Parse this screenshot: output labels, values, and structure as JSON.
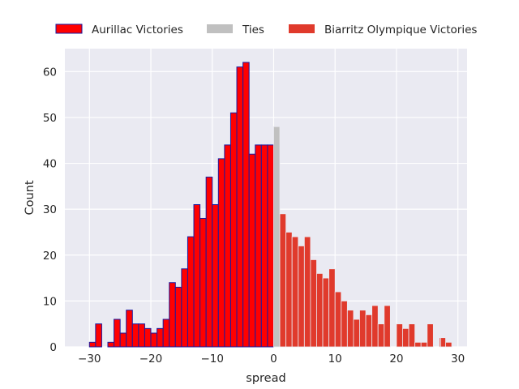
{
  "chart_data": {
    "type": "bar",
    "xlabel": "spread",
    "ylabel": "Count",
    "xlim": [
      -34,
      31.5
    ],
    "ylim": [
      0,
      65
    ],
    "xticks": [
      -30,
      -20,
      -10,
      0,
      10,
      20,
      30
    ],
    "yticks": [
      0,
      10,
      20,
      30,
      40,
      50,
      60
    ],
    "grid": true,
    "legend_position": "top",
    "bin_width": 1,
    "series": [
      {
        "name": "Aurillac Victories",
        "color": "#ff0000",
        "edge_color": "#1a1aa0",
        "x": [
          -30,
          -29,
          -28,
          -27,
          -26,
          -25,
          -24,
          -23,
          -22,
          -21,
          -20,
          -19,
          -18,
          -17,
          -16,
          -15,
          -14,
          -13,
          -12,
          -11,
          -10,
          -9,
          -8,
          -7,
          -6,
          -5,
          -4,
          -3,
          -2,
          -1
        ],
        "values": [
          1,
          5,
          0,
          1,
          6,
          3,
          8,
          5,
          5,
          4,
          3,
          4,
          6,
          14,
          13,
          17,
          24,
          31,
          28,
          37,
          31,
          41,
          44,
          51,
          61,
          62,
          42,
          44,
          44,
          44
        ]
      },
      {
        "name": "Ties",
        "color": "#c0c0c0",
        "x": [
          0
        ],
        "values": [
          48
        ]
      },
      {
        "name": "Biarritz Olympique Victories",
        "color": "#e03a2c",
        "x": [
          1,
          2,
          3,
          4,
          5,
          6,
          7,
          8,
          9,
          10,
          11,
          12,
          13,
          14,
          15,
          16,
          17,
          18,
          19,
          20,
          21,
          22,
          23,
          24,
          25,
          26,
          27,
          28
        ],
        "values": [
          29,
          25,
          24,
          22,
          24,
          19,
          16,
          15,
          17,
          12,
          10,
          8,
          6,
          8,
          7,
          9,
          5,
          9,
          0,
          5,
          4,
          5,
          1,
          1,
          5,
          0,
          2,
          1
        ]
      }
    ],
    "extra_bars": [
      {
        "series": "Biarritz Olympique Victories",
        "x": 27.2,
        "values": 2
      }
    ]
  }
}
